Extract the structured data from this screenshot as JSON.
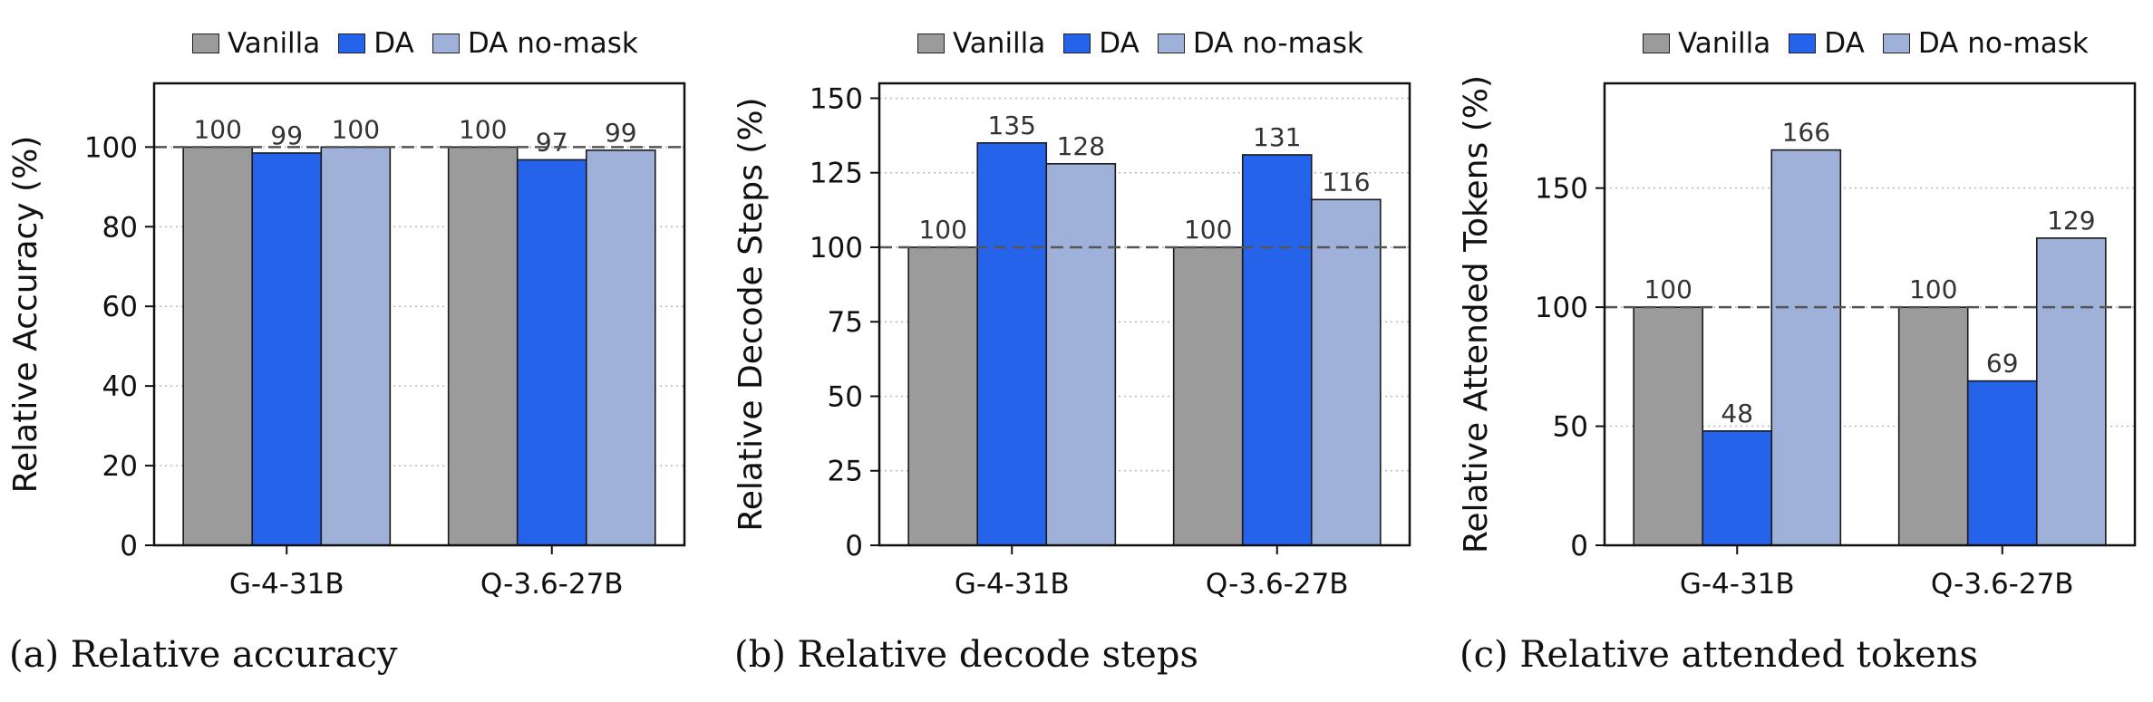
{
  "legend_labels": [
    "Vanilla",
    "DA",
    "DA no-mask"
  ],
  "colors": [
    "#9b9b9b",
    "#2563eb",
    "#9fb1d9"
  ],
  "chart_data": [
    {
      "type": "bar",
      "caption": "(a) Relative accuracy",
      "ylabel": "Relative Accuracy (%)",
      "categories": [
        "G-4-31B",
        "Q-3.6-27B"
      ],
      "ylim": [
        0,
        116
      ],
      "yticks": [
        0,
        20,
        40,
        60,
        80,
        100
      ],
      "reference_line": 100,
      "grid": "y dotted",
      "legend": "top",
      "series": [
        {
          "name": "Vanilla",
          "values": [
            100,
            100
          ]
        },
        {
          "name": "DA",
          "values": [
            98.5,
            96.8
          ]
        },
        {
          "name": "DA no-mask",
          "values": [
            100,
            99.2
          ]
        }
      ],
      "labels": [
        [
          "100",
          "99",
          "100"
        ],
        [
          "100",
          "97",
          "99"
        ]
      ]
    },
    {
      "type": "bar",
      "caption": "(b) Relative decode steps",
      "ylabel": "Relative Decode Steps (%)",
      "categories": [
        "G-4-31B",
        "Q-3.6-27B"
      ],
      "ylim": [
        0,
        155
      ],
      "yticks": [
        0,
        25,
        50,
        75,
        100,
        125,
        150
      ],
      "reference_line": 100,
      "grid": "y dotted",
      "legend": "top",
      "series": [
        {
          "name": "Vanilla",
          "values": [
            100,
            100
          ]
        },
        {
          "name": "DA",
          "values": [
            135,
            131
          ]
        },
        {
          "name": "DA no-mask",
          "values": [
            128,
            116
          ]
        }
      ],
      "labels": [
        [
          "100",
          "135",
          "128"
        ],
        [
          "100",
          "131",
          "116"
        ]
      ]
    },
    {
      "type": "bar",
      "caption": "(c) Relative attended tokens",
      "ylabel": "Relative Attended Tokens (%)",
      "categories": [
        "G-4-31B",
        "Q-3.6-27B"
      ],
      "ylim": [
        0,
        194
      ],
      "yticks": [
        0,
        50,
        100,
        150
      ],
      "reference_line": 100,
      "grid": "y dotted",
      "legend": "top",
      "series": [
        {
          "name": "Vanilla",
          "values": [
            100,
            100
          ]
        },
        {
          "name": "DA",
          "values": [
            48,
            69
          ]
        },
        {
          "name": "DA no-mask",
          "values": [
            166,
            129
          ]
        }
      ],
      "labels": [
        [
          "100",
          "48",
          "166"
        ],
        [
          "100",
          "69",
          "129"
        ]
      ]
    }
  ]
}
